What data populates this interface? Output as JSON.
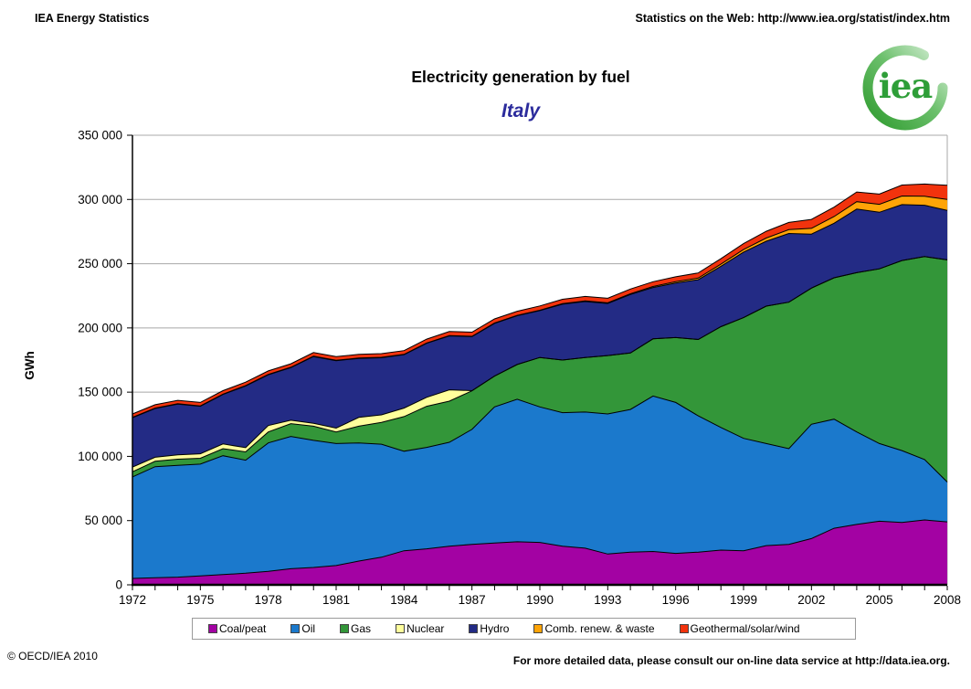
{
  "header": {
    "left": "IEA Energy Statistics",
    "right": "Statistics on the Web: http://www.iea.org/statist/index.htm"
  },
  "logo": {
    "text": "iea"
  },
  "title": "Electricity generation by fuel",
  "subtitle": "Italy",
  "footer": {
    "left": "© OECD/IEA 2010",
    "right": "For more detailed data, please consult our on-line data service at http://data.iea.org."
  },
  "chart_data": {
    "type": "area",
    "stacked": true,
    "title": "Electricity generation by fuel — Italy",
    "xlabel": "",
    "ylabel": "GWh",
    "unit": "GWh",
    "ylim": [
      0,
      350000
    ],
    "ytick_step": 50000,
    "ytick_labels": [
      "0",
      "50 000",
      "100 000",
      "150 000",
      "200 000",
      "250 000",
      "300 000",
      "350 000"
    ],
    "x": [
      1972,
      1973,
      1974,
      1975,
      1976,
      1977,
      1978,
      1979,
      1980,
      1981,
      1982,
      1983,
      1984,
      1985,
      1986,
      1987,
      1988,
      1989,
      1990,
      1991,
      1992,
      1993,
      1994,
      1995,
      1996,
      1997,
      1998,
      1999,
      2000,
      2001,
      2002,
      2003,
      2004,
      2005,
      2006,
      2007,
      2008
    ],
    "xtick_labels": [
      "1972",
      "1975",
      "1978",
      "1981",
      "1984",
      "1987",
      "1990",
      "1993",
      "1996",
      "1999",
      "2002",
      "2005",
      "2008"
    ],
    "grid": true,
    "gridline_color": "#a8a8a8",
    "legend_position": "bottom",
    "series": [
      {
        "name": "Coal/peat",
        "color": "#A302A3",
        "values": [
          5000,
          5500,
          6000,
          7000,
          8000,
          9000,
          10500,
          12500,
          13500,
          15000,
          18500,
          21500,
          26500,
          28000,
          30000,
          31500,
          32500,
          33500,
          33000,
          30000,
          28500,
          24000,
          25500,
          26000,
          24500,
          25500,
          27000,
          26500,
          30500,
          31500,
          36000,
          44000,
          47000,
          49500,
          48500,
          50500,
          49000
        ]
      },
      {
        "name": "Oil",
        "color": "#1B79CC",
        "values": [
          79000,
          86500,
          87000,
          87000,
          92500,
          88000,
          100000,
          103000,
          99000,
          95000,
          92000,
          88000,
          77500,
          79000,
          81000,
          89500,
          106000,
          111000,
          105500,
          104000,
          106000,
          109000,
          111000,
          121000,
          117500,
          106000,
          95500,
          87500,
          79500,
          74500,
          89000,
          85000,
          72000,
          60500,
          56000,
          47000,
          31000
        ]
      },
      {
        "name": "Gas",
        "color": "#339639",
        "values": [
          4000,
          4200,
          4800,
          4500,
          5500,
          6500,
          8500,
          10000,
          11000,
          9000,
          13000,
          17000,
          27000,
          32000,
          32000,
          30000,
          24000,
          27000,
          38500,
          41000,
          42500,
          45500,
          44000,
          44500,
          50500,
          59500,
          78500,
          94000,
          107000,
          114000,
          106000,
          110000,
          124000,
          136000,
          148000,
          158000,
          173000
        ]
      },
      {
        "name": "Nuclear",
        "color": "#FFFF9C",
        "values": [
          3600,
          3100,
          3400,
          3500,
          3700,
          3300,
          5000,
          2600,
          2200,
          3000,
          6800,
          5800,
          6600,
          7000,
          8800,
          200,
          0,
          0,
          0,
          0,
          0,
          0,
          0,
          0,
          0,
          0,
          0,
          0,
          0,
          0,
          0,
          0,
          0,
          0,
          0,
          0,
          0
        ]
      },
      {
        "name": "Hydro",
        "color": "#232B85",
        "values": [
          38500,
          38000,
          39500,
          37000,
          38500,
          48000,
          39500,
          41000,
          52000,
          52500,
          46000,
          44500,
          41500,
          42000,
          42000,
          42000,
          41000,
          38000,
          36500,
          43500,
          43500,
          40500,
          45500,
          40000,
          42500,
          46500,
          47000,
          51000,
          50500,
          53500,
          42000,
          42500,
          49500,
          44000,
          43500,
          40000,
          38500
        ]
      },
      {
        "name": "Comb. renew. & waste",
        "color": "#FFA407",
        "values": [
          300,
          300,
          300,
          300,
          300,
          300,
          300,
          300,
          300,
          300,
          300,
          300,
          300,
          300,
          300,
          300,
          300,
          300,
          300,
          400,
          500,
          500,
          600,
          800,
          1000,
          1300,
          1600,
          2000,
          2500,
          3000,
          4500,
          5200,
          5800,
          6200,
          6700,
          7000,
          8500
        ]
      },
      {
        "name": "Geothermal/solar/wind",
        "color": "#F2330D",
        "values": [
          2600,
          2600,
          2600,
          2700,
          2700,
          2700,
          2700,
          2700,
          2800,
          2800,
          2800,
          2900,
          2900,
          3000,
          3100,
          3200,
          3200,
          3200,
          3300,
          3400,
          3500,
          3600,
          3700,
          3700,
          3800,
          4000,
          4300,
          4600,
          5200,
          5600,
          7000,
          7300,
          7500,
          8000,
          8500,
          9500,
          11000
        ]
      }
    ]
  }
}
